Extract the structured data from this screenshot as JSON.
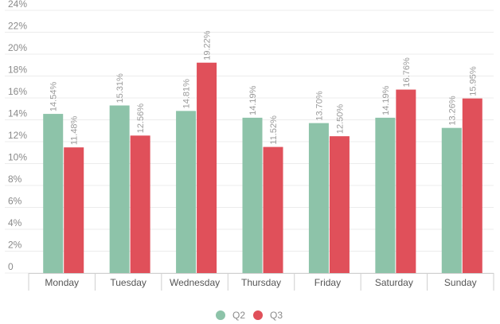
{
  "chart_data": {
    "type": "bar",
    "categories": [
      "Monday",
      "Tuesday",
      "Wednesday",
      "Thursday",
      "Friday",
      "Saturday",
      "Sunday"
    ],
    "series": [
      {
        "name": "Q2",
        "color": "#8dc3a9",
        "values": [
          14.54,
          15.31,
          14.81,
          14.19,
          13.7,
          14.19,
          13.26
        ],
        "labels": [
          "14.54%",
          "15.31%",
          "14.81%",
          "14.19%",
          "13.70%",
          "14.19%",
          "13.26%"
        ]
      },
      {
        "name": "Q3",
        "color": "#e0505a",
        "values": [
          11.48,
          12.56,
          19.22,
          11.52,
          12.5,
          16.76,
          15.95
        ],
        "labels": [
          "11.48%",
          "12.56%",
          "19.22%",
          "11.52%",
          "12.50%",
          "16.76%",
          "15.95%"
        ]
      }
    ],
    "yticks": [
      "0",
      "2%",
      "4%",
      "6%",
      "8%",
      "10%",
      "12%",
      "14%",
      "16%",
      "18%",
      "20%",
      "22%",
      "24%"
    ],
    "ylim": [
      0,
      24
    ],
    "grid": true,
    "legend": "bottom-center"
  }
}
